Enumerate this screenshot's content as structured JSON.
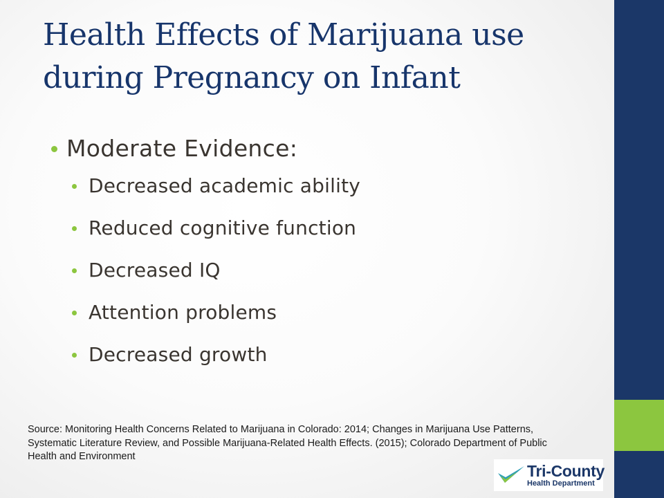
{
  "slide": {
    "title": "Health Effects of Marijuana use during Pregnancy on Infant",
    "main_bullet": "Moderate Evidence:",
    "sub_bullets": [
      "Decreased academic ability",
      "Reduced cognitive function",
      "Decreased IQ",
      "Attention problems",
      "Decreased growth"
    ],
    "source": "Source: Monitoring Health Concerns Related to Marijuana in Colorado: 2014; Changes in Marijuana Use Patterns, Systematic Literature Review, and Possible Marijuana-Related Health Effects. (2015); Colorado Department of Public Health and Environment"
  },
  "logo": {
    "name": "Tri-County",
    "subtitle": "Health Department",
    "icon": "checkmark-swoosh-icon"
  },
  "colors": {
    "title": "#17356b",
    "side_bar": "#1b3768",
    "accent": "#8cc63f",
    "body_text": "#3a3530"
  }
}
